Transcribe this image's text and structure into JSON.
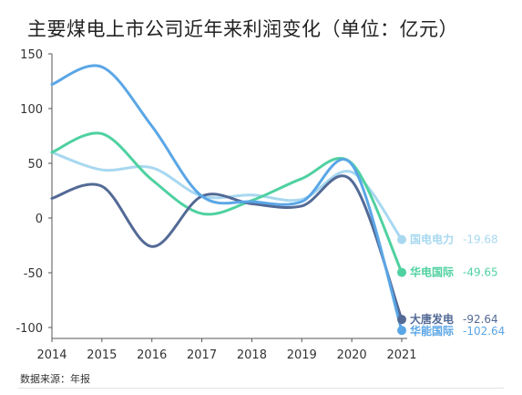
{
  "chart_data": {
    "type": "line",
    "title": "主要煤电上市公司近年来利润变化（单位：亿元）",
    "source": "数据来源：年报",
    "x": [
      "2014",
      "2015",
      "2016",
      "2017",
      "2018",
      "2019",
      "2020",
      "2021"
    ],
    "ylim": [
      -110,
      150
    ],
    "yticks": [
      -100,
      -50,
      0,
      50,
      100,
      150
    ],
    "grid": false,
    "legend": "end-labels",
    "series": [
      {
        "name": "国电电力",
        "values": [
          60,
          44,
          46,
          20,
          21,
          17,
          42,
          -19.68
        ],
        "end_label": "-19.68",
        "color": "#a8d8f0"
      },
      {
        "name": "华电国际",
        "values": [
          60,
          77,
          35,
          4,
          16,
          36,
          50,
          -49.65
        ],
        "end_label": "-49.65",
        "color": "#4fd1a0"
      },
      {
        "name": "大唐发电",
        "values": [
          18,
          29,
          -26,
          20,
          13,
          11,
          34,
          -92.64
        ],
        "end_label": "-92.64",
        "color": "#536a96"
      },
      {
        "name": "华能国际",
        "values": [
          122,
          138,
          84,
          20,
          15,
          15,
          49,
          -102.64
        ],
        "end_label": "-102.64",
        "color": "#5aa6e6"
      }
    ]
  }
}
